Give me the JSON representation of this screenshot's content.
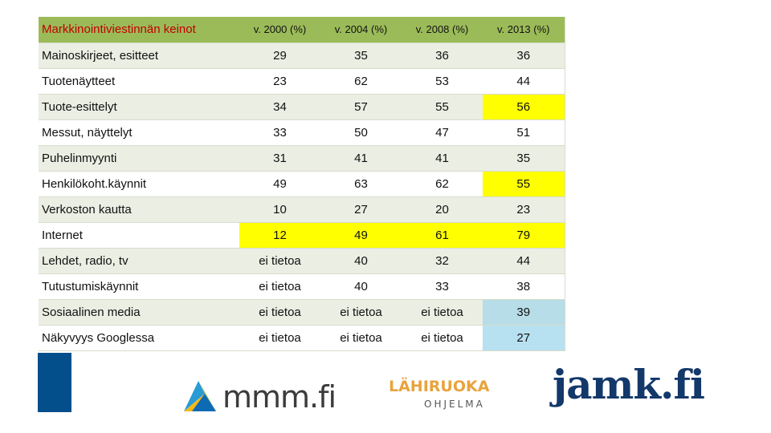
{
  "table": {
    "headers": [
      "Markkinointiviestinnän keinot",
      "v. 2000 (%)",
      "v. 2004 (%)",
      "v. 2008 (%)",
      "v. 2013 (%)"
    ],
    "rows": [
      {
        "label": "Mainoskirjeet, esitteet",
        "values": [
          "29",
          "35",
          "36",
          "36"
        ]
      },
      {
        "label": "Tuotenäytteet",
        "values": [
          "23",
          "62",
          "53",
          "44"
        ]
      },
      {
        "label": "Tuote-esittelyt",
        "values": [
          "34",
          "57",
          "55",
          "56"
        ]
      },
      {
        "label": "Messut, näyttelyt",
        "values": [
          "33",
          "50",
          "47",
          "51"
        ]
      },
      {
        "label": "Puhelinmyynti",
        "values": [
          "31",
          "41",
          "41",
          "35"
        ]
      },
      {
        "label": "Henkilökoht.käynnit",
        "values": [
          "49",
          "63",
          "62",
          "55"
        ]
      },
      {
        "label": "Verkoston kautta",
        "values": [
          "10",
          "27",
          "20",
          "23"
        ]
      },
      {
        "label": "Internet",
        "values": [
          "12",
          "49",
          "61",
          "79"
        ]
      },
      {
        "label": "Lehdet, radio, tv",
        "values": [
          "ei tietoa",
          "40",
          "32",
          "44"
        ]
      },
      {
        "label": "Tutustumiskäynnit",
        "values": [
          "ei tietoa",
          "40",
          "33",
          "38"
        ]
      },
      {
        "label": "Sosiaalinen media",
        "values": [
          "ei tietoa",
          "ei tietoa",
          "ei tietoa",
          "39"
        ]
      },
      {
        "label": "Näkyvyys Googlessa",
        "values": [
          "ei tietoa",
          "ei tietoa",
          "ei tietoa",
          "27"
        ]
      }
    ]
  },
  "logos": {
    "mmm": "mmm.fi",
    "lahiruoka_top": "LÄHIRUOKA",
    "lahiruoka_bottom": "OHJELMA",
    "jamk": "jamk.fi"
  },
  "colors": {
    "header_bg": "#9bbb59",
    "header_title": "#c00000",
    "row_alt": "#ebeee3",
    "highlight_yellow": "#ffff00",
    "highlight_teal": "#b7dde8",
    "left_bar": "#034f8c",
    "jamk_blue": "#13386a",
    "lahiruoka_orange": "#e8a33c"
  }
}
